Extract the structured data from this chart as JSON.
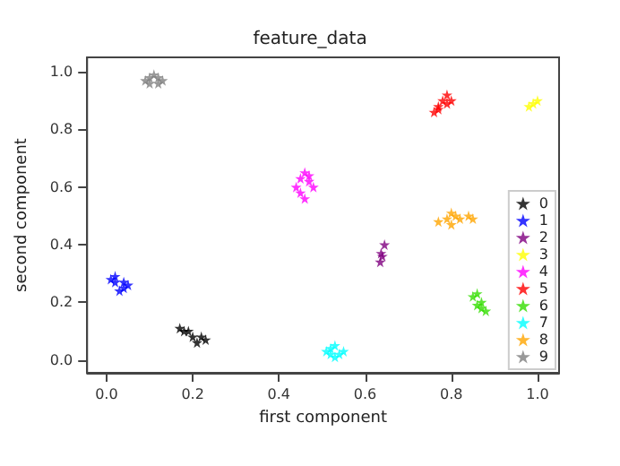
{
  "chart_data": {
    "type": "scatter",
    "title": "feature_data",
    "xlabel": "first component",
    "ylabel": "second component",
    "xlim": [
      -0.045,
      1.05
    ],
    "ylim": [
      -0.045,
      1.05
    ],
    "xticks": [
      {
        "value": 0,
        "label": "0.0"
      },
      {
        "value": 0.2,
        "label": "0.2"
      },
      {
        "value": 0.4,
        "label": "0.4"
      },
      {
        "value": 0.6,
        "label": "0.6"
      },
      {
        "value": 0.8,
        "label": "0.8"
      },
      {
        "value": 1,
        "label": "1.0"
      }
    ],
    "yticks": [
      {
        "value": 0,
        "label": "0.0"
      },
      {
        "value": 0.2,
        "label": "0.2"
      },
      {
        "value": 0.4,
        "label": "0.4"
      },
      {
        "value": 0.6,
        "label": "0.6"
      },
      {
        "value": 0.8,
        "label": "0.8"
      },
      {
        "value": 1,
        "label": "1.0"
      }
    ],
    "grid": false,
    "legend": "bottom right",
    "marker": "star",
    "series": [
      {
        "name": "0",
        "color": "#000000",
        "x": [
          0.17,
          0.18,
          0.2,
          0.22,
          0.23,
          0.19,
          0.21
        ],
        "values": [
          0.11,
          0.1,
          0.08,
          0.08,
          0.07,
          0.1,
          0.06
        ]
      },
      {
        "name": "1",
        "color": "#0000ff",
        "x": [
          0.01,
          0.02,
          0.04,
          0.05,
          0.03,
          0.04,
          0.02
        ],
        "values": [
          0.28,
          0.29,
          0.25,
          0.26,
          0.24,
          0.27,
          0.27
        ]
      },
      {
        "name": "2",
        "color": "#800080",
        "x": [
          0.635,
          0.637,
          0.64,
          0.645
        ],
        "values": [
          0.34,
          0.37,
          0.36,
          0.4
        ]
      },
      {
        "name": "3",
        "color": "#ffff00",
        "x": [
          0.98,
          0.99,
          1.0
        ],
        "values": [
          0.88,
          0.89,
          0.9
        ]
      },
      {
        "name": "4",
        "color": "#ff00ff",
        "x": [
          0.44,
          0.45,
          0.46,
          0.47,
          0.48,
          0.45,
          0.46,
          0.47
        ],
        "values": [
          0.6,
          0.63,
          0.65,
          0.62,
          0.6,
          0.58,
          0.56,
          0.64
        ]
      },
      {
        "name": "5",
        "color": "#ff0000",
        "x": [
          0.76,
          0.77,
          0.78,
          0.79,
          0.8,
          0.77,
          0.79
        ],
        "values": [
          0.86,
          0.88,
          0.9,
          0.92,
          0.9,
          0.87,
          0.89
        ]
      },
      {
        "name": "6",
        "color": "#33dd00",
        "x": [
          0.85,
          0.86,
          0.87,
          0.88,
          0.86,
          0.87
        ],
        "values": [
          0.22,
          0.23,
          0.2,
          0.17,
          0.19,
          0.18
        ]
      },
      {
        "name": "7",
        "color": "#00ffff",
        "x": [
          0.51,
          0.52,
          0.53,
          0.54,
          0.55,
          0.53,
          0.52
        ],
        "values": [
          0.03,
          0.04,
          0.05,
          0.02,
          0.03,
          0.01,
          0.02
        ]
      },
      {
        "name": "8",
        "color": "#ffa500",
        "x": [
          0.77,
          0.79,
          0.8,
          0.81,
          0.82,
          0.84,
          0.85,
          0.8
        ],
        "values": [
          0.48,
          0.49,
          0.51,
          0.5,
          0.49,
          0.5,
          0.49,
          0.47
        ]
      },
      {
        "name": "9",
        "color": "#808080",
        "x": [
          0.09,
          0.1,
          0.11,
          0.12,
          0.13,
          0.1,
          0.12
        ],
        "values": [
          0.97,
          0.98,
          0.99,
          0.98,
          0.97,
          0.96,
          0.96
        ]
      }
    ]
  }
}
